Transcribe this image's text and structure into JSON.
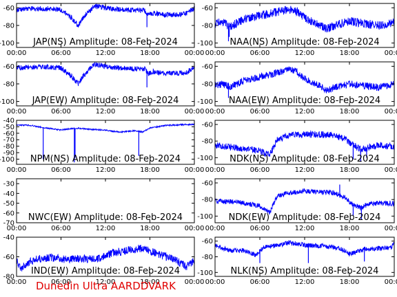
{
  "footer": "Dunedin Ultra AARDDVARK",
  "colors": {
    "trace": "#0000ff",
    "axes": "#000000",
    "footer": "#e00000"
  },
  "xtick_labels": [
    "00:00",
    "06:00",
    "12:00",
    "18:00",
    "00:00"
  ],
  "chart_data": [
    {
      "type": "line",
      "title": "JAP(NS) Amplitude: 08-Feb-2024",
      "xlim": [
        0,
        24
      ],
      "ylim": [
        -105,
        -55
      ],
      "yticks": [
        -100,
        -80,
        -60
      ],
      "ytick_labels": [
        "-100",
        "-80",
        "-60"
      ],
      "xtick_labels": [
        "00:00",
        "06:00",
        "12:00",
        "18:00",
        "00:00"
      ],
      "series": [
        {
          "x": [
            0,
            2,
            4,
            6,
            7.5,
            8.3,
            9.2,
            10.5,
            12,
            14,
            16,
            17.3,
            17.8,
            18.5,
            20,
            22,
            23,
            24
          ],
          "y": [
            -62,
            -61,
            -61,
            -62,
            -72,
            -80,
            -69,
            -58,
            -60,
            -62,
            -63,
            -63,
            -68,
            -66,
            -68,
            -68,
            -66,
            -61
          ],
          "spread": 3,
          "spikes": [
            [
              17.6,
              -82
            ]
          ]
        }
      ]
    },
    {
      "type": "line",
      "title": "NAA(NS) Amplitude: 08-Feb-2024",
      "xlim": [
        0,
        24
      ],
      "ylim": [
        -105,
        -55
      ],
      "yticks": [
        -100,
        -80,
        -60
      ],
      "ytick_labels": [
        "-100",
        "-80",
        "-60"
      ],
      "xtick_labels": [
        "00:00",
        "06:00",
        "12:00",
        "18:00",
        "00:00"
      ],
      "series": [
        {
          "x": [
            0,
            1,
            2,
            4,
            6,
            8,
            10,
            11,
            12,
            14,
            15,
            16,
            18,
            20,
            22,
            24
          ],
          "y": [
            -78,
            -76,
            -82,
            -72,
            -69,
            -65,
            -62,
            -64,
            -72,
            -79,
            -84,
            -80,
            -75,
            -78,
            -80,
            -76
          ],
          "spread": 5,
          "spikes": [
            [
              1.8,
              -98
            ],
            [
              1.9,
              -93
            ]
          ]
        }
      ]
    },
    {
      "type": "line",
      "title": "JAP(EW) Amplitude: 08-Feb-2024",
      "xlim": [
        0,
        24
      ],
      "ylim": [
        -105,
        -55
      ],
      "yticks": [
        -100,
        -80,
        -60
      ],
      "ytick_labels": [
        "-100",
        "-80",
        "-60"
      ],
      "xtick_labels": [
        "00:00",
        "06:00",
        "12:00",
        "18:00",
        "00:00"
      ],
      "series": [
        {
          "x": [
            0,
            2,
            4,
            6,
            7.5,
            8.3,
            9.2,
            10.5,
            12,
            14,
            16,
            17.3,
            17.8,
            18.5,
            20,
            22,
            23,
            24
          ],
          "y": [
            -62,
            -61,
            -61,
            -62,
            -72,
            -80,
            -69,
            -58,
            -60,
            -62,
            -63,
            -63,
            -68,
            -66,
            -68,
            -68,
            -67,
            -60
          ],
          "spread": 3,
          "spikes": [
            [
              17.6,
              -84
            ]
          ]
        }
      ]
    },
    {
      "type": "line",
      "title": "NAA(EW) Amplitude: 08-Feb-2024",
      "xlim": [
        0,
        24
      ],
      "ylim": [
        -105,
        -55
      ],
      "yticks": [
        -100,
        -80,
        -60
      ],
      "ytick_labels": [
        "-100",
        "-80",
        "-60"
      ],
      "xtick_labels": [
        "00:00",
        "06:00",
        "12:00",
        "18:00",
        "00:00"
      ],
      "series": [
        {
          "x": [
            0,
            1,
            2,
            4,
            6,
            8,
            10,
            11,
            12,
            14,
            15,
            16,
            18,
            20,
            22,
            24
          ],
          "y": [
            -82,
            -80,
            -84,
            -76,
            -72,
            -68,
            -64,
            -66,
            -74,
            -82,
            -88,
            -84,
            -80,
            -82,
            -84,
            -80
          ],
          "spread": 4,
          "spikes": [
            [
              1.8,
              -96
            ]
          ]
        }
      ]
    },
    {
      "type": "line",
      "title": "NPM(NS) Amplitude: 08-Feb-2024",
      "xlim": [
        0,
        24
      ],
      "ylim": [
        -108,
        -40
      ],
      "yticks": [
        -100,
        -90,
        -80,
        -70,
        -60,
        -50,
        -40
      ],
      "ytick_labels": [
        "-100",
        "-90",
        "-80",
        "-70",
        "-60",
        "-50",
        "-40"
      ],
      "xtick_labels": [
        "00:00",
        "06:00",
        "12:00",
        "18:00",
        "00:00"
      ],
      "series": [
        {
          "x": [
            0,
            2,
            4,
            6,
            8,
            10,
            12,
            13,
            14,
            15,
            16,
            17,
            18,
            20,
            22,
            24
          ],
          "y": [
            -47,
            -48,
            -52,
            -55,
            -52,
            -54,
            -55,
            -57,
            -58,
            -57,
            -56,
            -58,
            -52,
            -48,
            -47,
            -46
          ],
          "spread": 1,
          "spikes": [
            [
              3.6,
              -100
            ],
            [
              7.8,
              -105
            ],
            [
              7.9,
              -98
            ],
            [
              16.5,
              -95
            ]
          ]
        }
      ]
    },
    {
      "type": "line",
      "title": "NDK(NS) Amplitude: 08-Feb-2024",
      "xlim": [
        0,
        24
      ],
      "ylim": [
        -108,
        -55
      ],
      "yticks": [
        -100,
        -80,
        -60
      ],
      "ytick_labels": [
        "-100",
        "-80",
        "-60"
      ],
      "xtick_labels": [
        "00:00",
        "06:00",
        "12:00",
        "18:00",
        "00:00"
      ],
      "series": [
        {
          "x": [
            0,
            3,
            6,
            7.3,
            7.8,
            8.3,
            10,
            12,
            14,
            16,
            17.5,
            18.5,
            19.5,
            20.5,
            22,
            24
          ],
          "y": [
            -85,
            -88,
            -92,
            -97,
            -88,
            -78,
            -73,
            -72,
            -72,
            -73,
            -78,
            -85,
            -90,
            -88,
            -85,
            -87
          ],
          "spread": 4,
          "spikes": [
            [
              18.5,
              -102
            ],
            [
              19.5,
              -105
            ],
            [
              20.3,
              -100
            ]
          ]
        }
      ]
    },
    {
      "type": "line",
      "title": "NWC(EW) Amplitude: 08-Feb-2024",
      "xlim": [
        0,
        24
      ],
      "ylim": [
        -70,
        -25
      ],
      "yticks": [
        -70,
        -60,
        -50,
        -40,
        -30
      ],
      "ytick_labels": [
        "-70",
        "-60",
        "-50",
        "-40",
        "-30"
      ],
      "xtick_labels": [
        "00:00",
        "06:00",
        "12:00",
        "18:00",
        "00:00"
      ],
      "series": []
    },
    {
      "type": "line",
      "title": "NDK(EW) Amplitude: 08-Feb-2024",
      "xlim": [
        0,
        24
      ],
      "ylim": [
        -108,
        -55
      ],
      "yticks": [
        -100,
        -80,
        -60
      ],
      "ytick_labels": [
        "-100",
        "-80",
        "-60"
      ],
      "xtick_labels": [
        "00:00",
        "06:00",
        "12:00",
        "18:00",
        "00:00"
      ],
      "series": [
        {
          "x": [
            0,
            3,
            6,
            7.3,
            7.8,
            8.3,
            10,
            12,
            14,
            16,
            17.5,
            18.5,
            19.5,
            20.5,
            22,
            24
          ],
          "y": [
            -82,
            -83,
            -88,
            -95,
            -86,
            -76,
            -72,
            -70,
            -71,
            -72,
            -78,
            -86,
            -90,
            -86,
            -84,
            -85
          ],
          "spread": 3,
          "spikes": [
            [
              16.7,
              -62
            ],
            [
              18.5,
              -100
            ],
            [
              19.6,
              -104
            ]
          ]
        }
      ]
    },
    {
      "type": "line",
      "title": "IND(EW) Amplitude: 08-Feb-2024",
      "xlim": [
        0,
        24
      ],
      "ylim": [
        -80,
        -40
      ],
      "yticks": [
        -80,
        -60,
        -40
      ],
      "ytick_labels": [
        "-80",
        "-60",
        "-40"
      ],
      "xtick_labels": [
        "00:00",
        "06:00",
        "12:00",
        "18:00",
        "00:00"
      ],
      "series": [
        {
          "x": [
            0,
            0.6,
            1.5,
            3,
            5,
            7,
            9,
            11,
            13,
            14,
            16,
            17,
            19,
            21,
            23,
            24
          ],
          "y": [
            -64,
            -72,
            -66,
            -62,
            -61,
            -63,
            -62,
            -62,
            -56,
            -55,
            -52,
            -51,
            -57,
            -62,
            -70,
            -64
          ],
          "spread": 4,
          "spikes": []
        }
      ]
    },
    {
      "type": "line",
      "title": "NLK(NS) Amplitude: 08-Feb-2024",
      "xlim": [
        0,
        24
      ],
      "ylim": [
        -105,
        -55
      ],
      "yticks": [
        -100,
        -80,
        -60
      ],
      "ytick_labels": [
        "-100",
        "-80",
        "-60"
      ],
      "xtick_labels": [
        "00:00",
        "06:00",
        "12:00",
        "18:00",
        "00:00"
      ],
      "series": [
        {
          "x": [
            0,
            2,
            4,
            5.5,
            6.5,
            8,
            10,
            12,
            14,
            16,
            17.5,
            18,
            19,
            20,
            22,
            23.5,
            24
          ],
          "y": [
            -66,
            -72,
            -72,
            -78,
            -68,
            -66,
            -62,
            -65,
            -66,
            -68,
            -72,
            -76,
            -74,
            -70,
            -69,
            -69,
            -62
          ],
          "spread": 3,
          "spikes": [
            [
              6,
              -88
            ],
            [
              12.5,
              -88
            ],
            [
              20,
              -86
            ]
          ]
        }
      ]
    }
  ]
}
